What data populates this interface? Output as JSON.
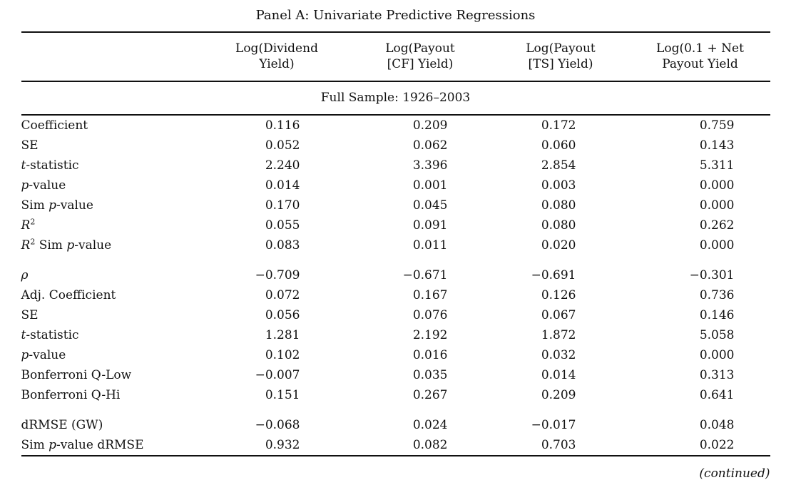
{
  "page": {
    "colors": {
      "background": "#ffffff",
      "text": "#111111",
      "rule": "#111111"
    }
  },
  "table": {
    "title": "Panel A: Univariate Predictive Regressions",
    "columns": [
      {
        "line1": "Log(Dividend",
        "line2": "Yield)"
      },
      {
        "line1": "Log(Payout",
        "line2": "[CF] Yield)"
      },
      {
        "line1": "Log(Payout",
        "line2": "[TS] Yield)"
      },
      {
        "line1": "Log(0.1 + Net",
        "line2": "Payout Yield"
      }
    ],
    "subheader": "Full Sample: 1926–2003",
    "sections": [
      {
        "rows": [
          {
            "label": "Coefficient",
            "values": [
              "0.116",
              "0.209",
              "0.172",
              "0.759"
            ]
          },
          {
            "label": "SE",
            "values": [
              "0.052",
              "0.062",
              "0.060",
              "0.143"
            ]
          },
          {
            "label": "*t*-statistic",
            "values": [
              "2.240",
              "3.396",
              "2.854",
              "5.311"
            ]
          },
          {
            "label": "*p*-value",
            "values": [
              "0.014",
              "0.001",
              "0.003",
              "0.000"
            ]
          },
          {
            "label": "Sim *p*-value",
            "values": [
              "0.170",
              "0.045",
              "0.080",
              "0.000"
            ]
          },
          {
            "label": "*R*^{2}",
            "values": [
              "0.055",
              "0.091",
              "0.080",
              "0.262"
            ]
          },
          {
            "label": "*R*^{2} Sim *p*-value",
            "values": [
              "0.083",
              "0.011",
              "0.020",
              "0.000"
            ]
          }
        ]
      },
      {
        "rows": [
          {
            "label": "*ρ*",
            "values": [
              "−0.709",
              "−0.671",
              "−0.691",
              "−0.301"
            ]
          },
          {
            "label": "Adj. Coefficient",
            "values": [
              "0.072",
              "0.167",
              "0.126",
              "0.736"
            ]
          },
          {
            "label": "SE",
            "values": [
              "0.056",
              "0.076",
              "0.067",
              "0.146"
            ]
          },
          {
            "label": "*t*-statistic",
            "values": [
              "1.281",
              "2.192",
              "1.872",
              "5.058"
            ]
          },
          {
            "label": "*p*-value",
            "values": [
              "0.102",
              "0.016",
              "0.032",
              "0.000"
            ]
          },
          {
            "label": "Bonferroni Q-Low",
            "values": [
              "−0.007",
              "0.035",
              "0.014",
              "0.313"
            ]
          },
          {
            "label": "Bonferroni Q-Hi",
            "values": [
              "0.151",
              "0.267",
              "0.209",
              "0.641"
            ]
          }
        ]
      },
      {
        "rows": [
          {
            "label": "dRMSE (GW)",
            "values": [
              "−0.068",
              "0.024",
              "−0.017",
              "0.048"
            ]
          },
          {
            "label": "Sim *p*-value dRMSE",
            "values": [
              "0.932",
              "0.082",
              "0.703",
              "0.022"
            ]
          }
        ]
      }
    ],
    "footer": "(continued)"
  }
}
